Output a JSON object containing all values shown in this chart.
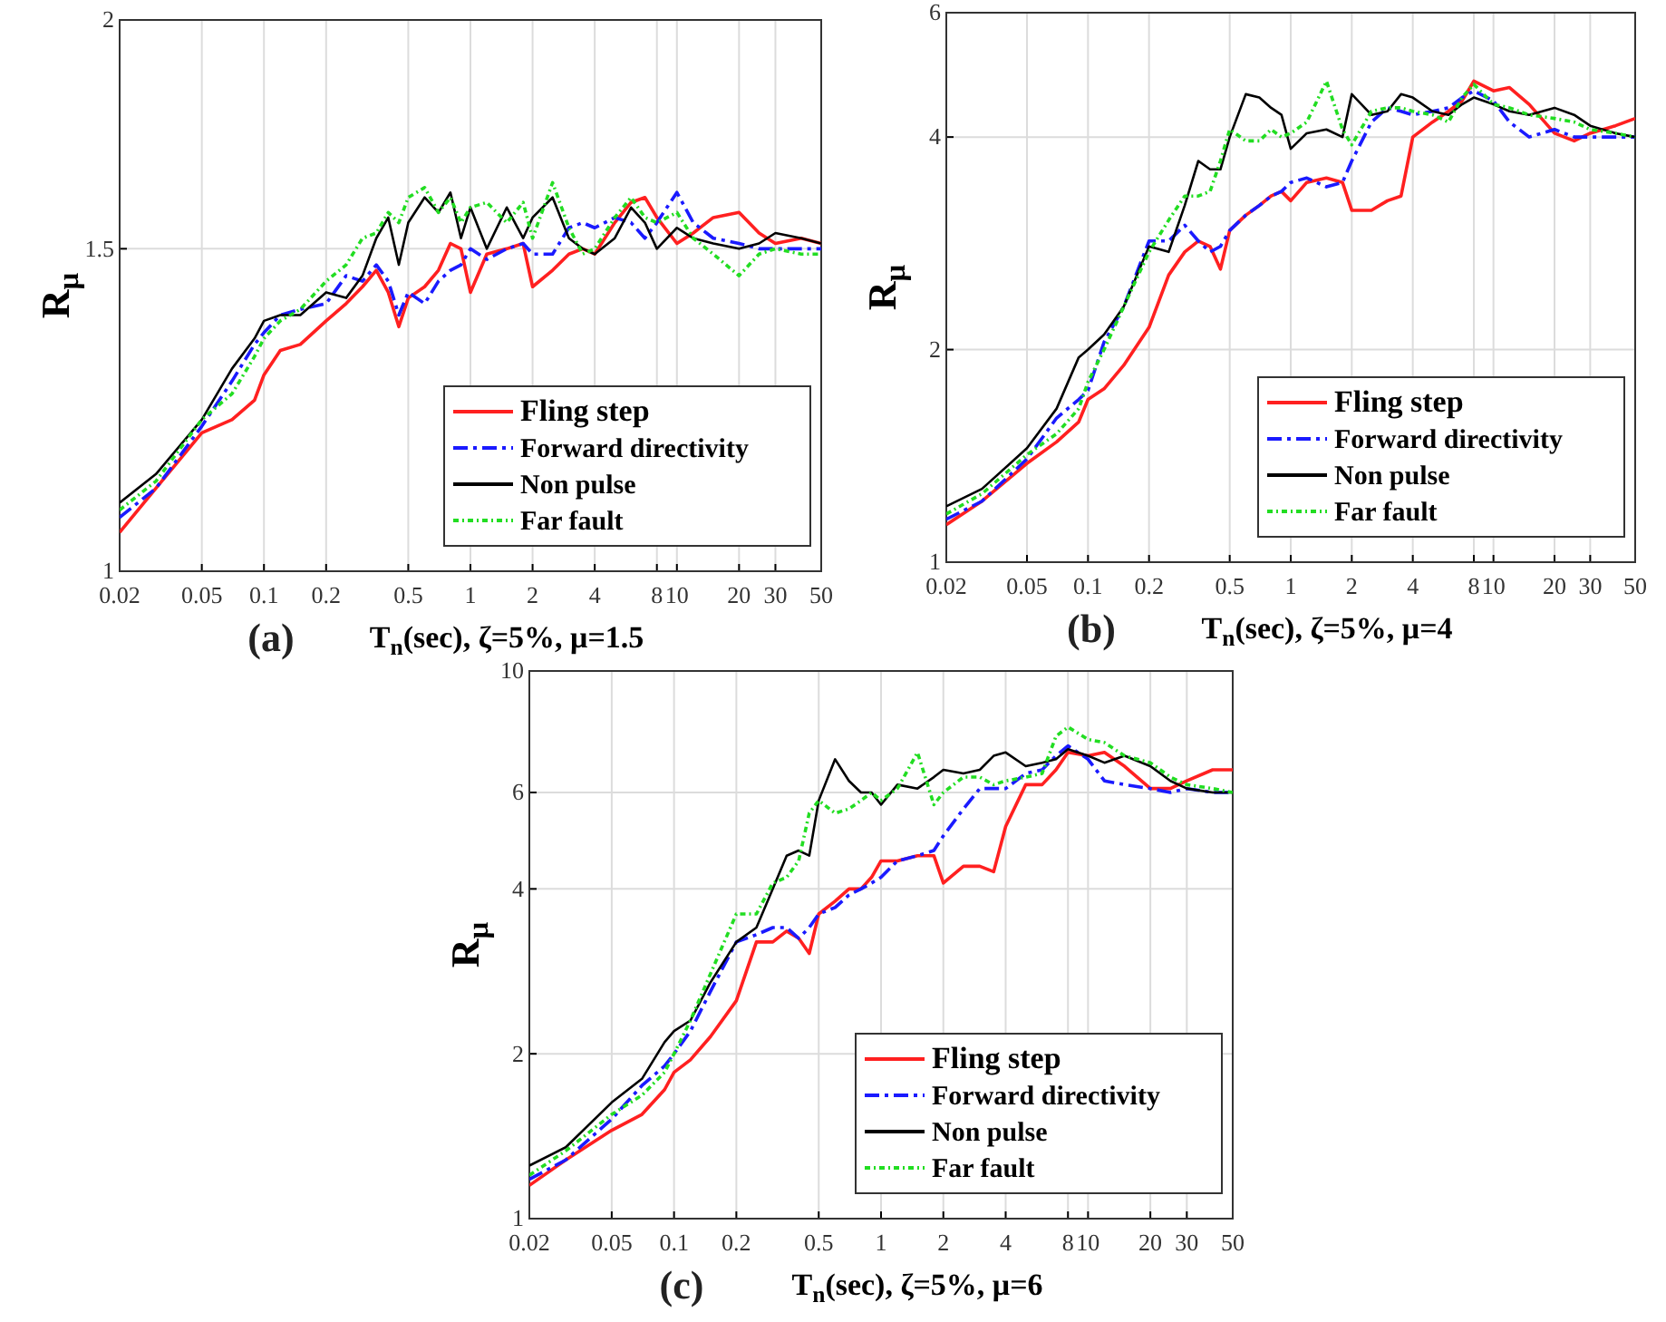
{
  "chart_data": [
    {
      "type": "line",
      "xlabel": "T$_{n}$(sec), ζ=5%, μ=1.5",
      "ylabel": "R$_{μ}$",
      "annotations": [
        "(a)"
      ],
      "log": "xy",
      "grid": true,
      "legend": "bottom right",
      "x": [
        0.02,
        0.03,
        0.05,
        0.07,
        0.09,
        0.1,
        0.12,
        0.15,
        0.2,
        0.25,
        0.3,
        0.35,
        0.4,
        0.45,
        0.5,
        0.6,
        0.7,
        0.8,
        0.9,
        1,
        1.2,
        1.5,
        1.8,
        2,
        2.5,
        3,
        3.5,
        4,
        5,
        6,
        7,
        8,
        10,
        12,
        15,
        20,
        25,
        30,
        40,
        50
      ],
      "xlim": [
        0.02,
        50
      ],
      "xticks": [
        0.02,
        0.05,
        0.1,
        0.2,
        0.5,
        1,
        2,
        4,
        8,
        10,
        20,
        30,
        50
      ],
      "ylim": [
        1,
        2
      ],
      "yticks": [
        1,
        1.5,
        2
      ],
      "series": [
        {
          "name": "Fling step",
          "color": "#ff2020",
          "line_style": "solid",
          "values": [
            1.05,
            1.11,
            1.19,
            1.21,
            1.24,
            1.28,
            1.32,
            1.33,
            1.37,
            1.4,
            1.43,
            1.46,
            1.42,
            1.36,
            1.41,
            1.43,
            1.46,
            1.51,
            1.5,
            1.42,
            1.49,
            1.5,
            1.51,
            1.43,
            1.46,
            1.49,
            1.5,
            1.49,
            1.55,
            1.59,
            1.6,
            1.56,
            1.51,
            1.53,
            1.56,
            1.57,
            1.53,
            1.51,
            1.52,
            1.51
          ]
        },
        {
          "name": "Forward directivity",
          "color": "#1a1aff",
          "line_style": "dashed",
          "values": [
            1.07,
            1.11,
            1.2,
            1.27,
            1.33,
            1.35,
            1.38,
            1.39,
            1.4,
            1.45,
            1.44,
            1.47,
            1.44,
            1.38,
            1.42,
            1.4,
            1.44,
            1.46,
            1.47,
            1.5,
            1.48,
            1.5,
            1.51,
            1.49,
            1.49,
            1.54,
            1.55,
            1.54,
            1.56,
            1.55,
            1.52,
            1.55,
            1.61,
            1.55,
            1.52,
            1.51,
            1.5,
            1.5,
            1.5,
            1.5
          ]
        },
        {
          "name": "Non pulse",
          "color": "#000000",
          "line_style": "solid",
          "values": [
            1.09,
            1.13,
            1.21,
            1.29,
            1.34,
            1.37,
            1.38,
            1.38,
            1.42,
            1.41,
            1.45,
            1.52,
            1.56,
            1.47,
            1.55,
            1.6,
            1.57,
            1.61,
            1.52,
            1.58,
            1.5,
            1.58,
            1.52,
            1.56,
            1.6,
            1.52,
            1.5,
            1.49,
            1.52,
            1.58,
            1.55,
            1.5,
            1.54,
            1.52,
            1.51,
            1.5,
            1.51,
            1.53,
            1.52,
            1.51
          ]
        },
        {
          "name": "Far fault",
          "color": "#22dd22",
          "line_style": "dotted",
          "values": [
            1.08,
            1.12,
            1.21,
            1.25,
            1.31,
            1.34,
            1.37,
            1.39,
            1.44,
            1.47,
            1.52,
            1.53,
            1.57,
            1.55,
            1.6,
            1.62,
            1.57,
            1.6,
            1.55,
            1.58,
            1.59,
            1.55,
            1.59,
            1.52,
            1.63,
            1.54,
            1.49,
            1.5,
            1.56,
            1.6,
            1.56,
            1.55,
            1.57,
            1.52,
            1.49,
            1.45,
            1.49,
            1.5,
            1.49,
            1.49
          ]
        }
      ]
    },
    {
      "type": "line",
      "xlabel": "T$_{n}$(sec), ζ=5%, μ=4",
      "ylabel": "R$_{μ}$",
      "annotations": [
        "(b)"
      ],
      "log": "xy",
      "grid": true,
      "legend": "bottom right",
      "x": [
        0.02,
        0.03,
        0.05,
        0.07,
        0.09,
        0.1,
        0.12,
        0.15,
        0.2,
        0.25,
        0.3,
        0.35,
        0.4,
        0.45,
        0.5,
        0.6,
        0.7,
        0.8,
        0.9,
        1,
        1.2,
        1.5,
        1.8,
        2,
        2.5,
        3,
        3.5,
        4,
        5,
        6,
        7,
        8,
        10,
        12,
        15,
        20,
        25,
        30,
        40,
        50
      ],
      "xlim": [
        0.02,
        50
      ],
      "xticks": [
        0.02,
        0.05,
        0.1,
        0.2,
        0.5,
        1,
        2,
        4,
        8,
        10,
        20,
        30,
        50
      ],
      "ylim": [
        1,
        6
      ],
      "yticks": [
        1,
        2,
        4,
        6
      ],
      "series": [
        {
          "name": "Fling step",
          "color": "#ff2020",
          "line_style": "solid",
          "values": [
            1.13,
            1.22,
            1.38,
            1.48,
            1.58,
            1.7,
            1.76,
            1.9,
            2.15,
            2.55,
            2.75,
            2.85,
            2.8,
            2.6,
            2.95,
            3.1,
            3.2,
            3.3,
            3.35,
            3.25,
            3.45,
            3.5,
            3.45,
            3.15,
            3.15,
            3.25,
            3.3,
            4.0,
            4.2,
            4.35,
            4.5,
            4.8,
            4.65,
            4.7,
            4.45,
            4.05,
            3.95,
            4.05,
            4.15,
            4.25
          ]
        },
        {
          "name": "Forward directivity",
          "color": "#1a1aff",
          "line_style": "dashed",
          "values": [
            1.15,
            1.22,
            1.4,
            1.6,
            1.7,
            1.75,
            2.05,
            2.3,
            2.85,
            2.85,
            3.0,
            2.85,
            2.75,
            2.8,
            2.95,
            3.1,
            3.2,
            3.3,
            3.35,
            3.45,
            3.5,
            3.4,
            3.45,
            3.7,
            4.2,
            4.4,
            4.35,
            4.3,
            4.35,
            4.4,
            4.55,
            4.65,
            4.5,
            4.2,
            4.0,
            4.1,
            4.0,
            4.0,
            4.0,
            4.0
          ]
        },
        {
          "name": "Non pulse",
          "color": "#000000",
          "line_style": "solid",
          "values": [
            1.2,
            1.27,
            1.45,
            1.65,
            1.95,
            2.0,
            2.1,
            2.3,
            2.8,
            2.75,
            3.2,
            3.7,
            3.6,
            3.6,
            4.0,
            4.6,
            4.55,
            4.4,
            4.3,
            3.85,
            4.05,
            4.1,
            4.0,
            4.6,
            4.3,
            4.35,
            4.6,
            4.55,
            4.35,
            4.3,
            4.45,
            4.55,
            4.45,
            4.35,
            4.3,
            4.4,
            4.3,
            4.15,
            4.05,
            4.0
          ]
        },
        {
          "name": "Far fault",
          "color": "#22dd22",
          "line_style": "dotted",
          "values": [
            1.17,
            1.25,
            1.42,
            1.52,
            1.65,
            1.8,
            2.0,
            2.3,
            2.75,
            3.05,
            3.3,
            3.3,
            3.35,
            3.7,
            4.1,
            3.95,
            3.95,
            4.1,
            4.0,
            4.05,
            4.2,
            4.8,
            4.1,
            3.9,
            4.35,
            4.4,
            4.4,
            4.35,
            4.3,
            4.2,
            4.55,
            4.75,
            4.45,
            4.4,
            4.3,
            4.25,
            4.2,
            4.1,
            4.05,
            4.0
          ]
        }
      ]
    },
    {
      "type": "line",
      "xlabel": "T$_{n}$(sec), ζ=5%, μ=6",
      "ylabel": "R$_{μ}$",
      "annotations": [
        "(c)"
      ],
      "log": "xy",
      "grid": true,
      "legend": "bottom right",
      "x": [
        0.02,
        0.03,
        0.05,
        0.07,
        0.09,
        0.1,
        0.12,
        0.15,
        0.2,
        0.25,
        0.3,
        0.35,
        0.4,
        0.45,
        0.5,
        0.6,
        0.7,
        0.8,
        0.9,
        1,
        1.2,
        1.5,
        1.8,
        2,
        2.5,
        3,
        3.5,
        4,
        5,
        6,
        7,
        8,
        10,
        12,
        15,
        20,
        25,
        30,
        40,
        50
      ],
      "xlim": [
        0.02,
        50
      ],
      "xticks": [
        0.02,
        0.05,
        0.1,
        0.2,
        0.5,
        1,
        2,
        4,
        8,
        10,
        20,
        30,
        50
      ],
      "ylim": [
        1,
        10
      ],
      "yticks": [
        1,
        2,
        4,
        6,
        10
      ],
      "series": [
        {
          "name": "Fling step",
          "color": "#ff2020",
          "line_style": "solid",
          "values": [
            1.15,
            1.28,
            1.45,
            1.55,
            1.72,
            1.85,
            1.95,
            2.15,
            2.5,
            3.2,
            3.2,
            3.35,
            3.25,
            3.05,
            3.6,
            3.8,
            4.0,
            4.0,
            4.2,
            4.5,
            4.5,
            4.6,
            4.6,
            4.1,
            4.4,
            4.4,
            4.3,
            5.2,
            6.2,
            6.2,
            6.6,
            7.1,
            7.0,
            7.1,
            6.7,
            6.1,
            6.1,
            6.3,
            6.6,
            6.6
          ]
        },
        {
          "name": "Forward directivity",
          "color": "#1a1aff",
          "line_style": "dashed",
          "values": [
            1.18,
            1.28,
            1.52,
            1.75,
            1.9,
            2.0,
            2.2,
            2.6,
            3.2,
            3.3,
            3.4,
            3.4,
            3.25,
            3.4,
            3.6,
            3.7,
            3.9,
            4.0,
            4.1,
            4.2,
            4.5,
            4.6,
            4.7,
            5.0,
            5.6,
            6.1,
            6.1,
            6.1,
            6.5,
            6.6,
            7.0,
            7.3,
            6.9,
            6.3,
            6.2,
            6.1,
            6.0,
            6.1,
            6.0,
            6.0
          ]
        },
        {
          "name": "Non pulse",
          "color": "#000000",
          "line_style": "solid",
          "values": [
            1.25,
            1.35,
            1.63,
            1.8,
            2.1,
            2.2,
            2.3,
            2.7,
            3.2,
            3.4,
            4.0,
            4.6,
            4.7,
            4.6,
            5.8,
            6.9,
            6.3,
            6.0,
            6.0,
            5.7,
            6.2,
            6.1,
            6.4,
            6.6,
            6.5,
            6.6,
            7.0,
            7.1,
            6.7,
            6.8,
            6.9,
            7.2,
            7.0,
            6.8,
            7.0,
            6.7,
            6.3,
            6.1,
            6.0,
            6.0
          ]
        },
        {
          "name": "Far fault",
          "color": "#22dd22",
          "line_style": "dotted",
          "values": [
            1.2,
            1.33,
            1.55,
            1.68,
            1.85,
            2.0,
            2.3,
            2.8,
            3.6,
            3.6,
            4.1,
            4.2,
            4.5,
            5.5,
            5.8,
            5.5,
            5.6,
            5.8,
            6.0,
            5.8,
            6.1,
            7.1,
            5.7,
            6.0,
            6.4,
            6.4,
            6.2,
            6.3,
            6.4,
            6.5,
            7.6,
            7.9,
            7.5,
            7.4,
            7.0,
            6.8,
            6.4,
            6.2,
            6.1,
            6.0
          ]
        }
      ]
    }
  ]
}
